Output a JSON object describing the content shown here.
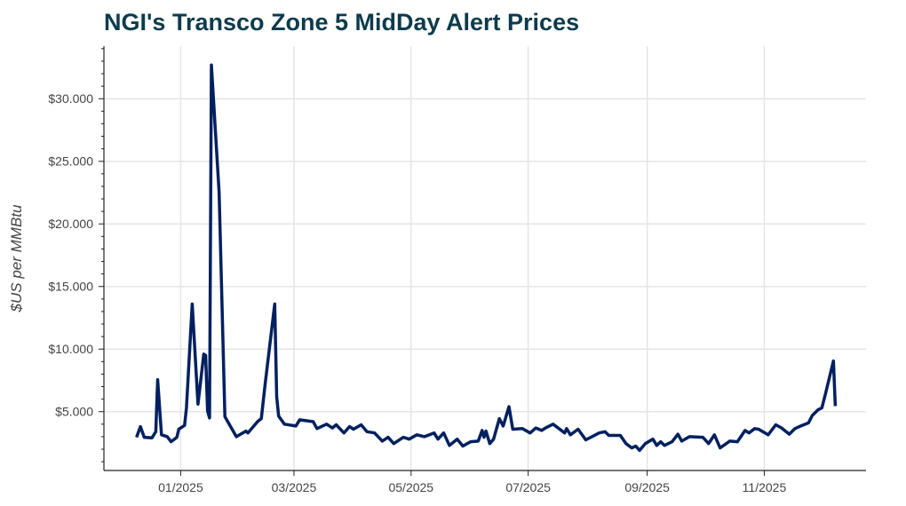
{
  "chart_data": {
    "type": "line",
    "title": "NGI's Transco Zone 5 MidDay Alert Prices",
    "xlabel": "",
    "ylabel": "$US per MMBtu",
    "ylim": [
      0.3,
      34.2
    ],
    "xlim": [
      "2024-11-22",
      "2025-12-24"
    ],
    "grid": true,
    "line_color": "#002060",
    "title_color": "#0d3b4c",
    "yticks": [
      5,
      10,
      15,
      20,
      25,
      30
    ],
    "ytick_labels": [
      "$5.000",
      "$10.000",
      "$15.000",
      "$20.000",
      "$25.000",
      "$30.000"
    ],
    "xticks": [
      "2025-01-01",
      "2025-03-01",
      "2025-05-01",
      "2025-07-01",
      "2025-09-01",
      "2025-11-01"
    ],
    "xtick_labels": [
      "01/2025",
      "03/2025",
      "05/2025",
      "07/2025",
      "09/2025",
      "11/2025"
    ],
    "series": [
      {
        "x": [
          "2024-12-09",
          "2024-12-11",
          "2024-12-13",
          "2024-12-17",
          "2024-12-19",
          "2024-12-20",
          "2024-12-22",
          "2024-12-25",
          "2024-12-27",
          "2024-12-30",
          "2024-12-31",
          "2025-01-03",
          "2025-01-04",
          "2025-01-07",
          "2025-01-10",
          "2025-01-13",
          "2025-01-14",
          "2025-01-15",
          "2025-01-16",
          "2025-01-17",
          "2025-01-21",
          "2025-01-24",
          "2025-01-30",
          "2025-02-04",
          "2025-02-05",
          "2025-02-10",
          "2025-02-12",
          "2025-02-14",
          "2025-02-19",
          "2025-02-20",
          "2025-02-21",
          "2025-02-24",
          "2025-03-02",
          "2025-03-04",
          "2025-03-11",
          "2025-03-13",
          "2025-03-18",
          "2025-03-21",
          "2025-03-23",
          "2025-03-27",
          "2025-03-30",
          "2025-04-01",
          "2025-04-05",
          "2025-04-08",
          "2025-04-12",
          "2025-04-16",
          "2025-04-19",
          "2025-04-22",
          "2025-04-27",
          "2025-04-30",
          "2025-05-04",
          "2025-05-08",
          "2025-05-13",
          "2025-05-15",
          "2025-05-18",
          "2025-05-21",
          "2025-05-25",
          "2025-05-28",
          "2025-06-01",
          "2025-06-05",
          "2025-06-07",
          "2025-06-08",
          "2025-06-09",
          "2025-06-11",
          "2025-06-13",
          "2025-06-16",
          "2025-06-18",
          "2025-06-21",
          "2025-06-23",
          "2025-06-28",
          "2025-07-02",
          "2025-07-05",
          "2025-07-08",
          "2025-07-10",
          "2025-07-14",
          "2025-07-20",
          "2025-07-21",
          "2025-07-23",
          "2025-07-27",
          "2025-07-31",
          "2025-08-07",
          "2025-08-10",
          "2025-08-12",
          "2025-08-18",
          "2025-08-21",
          "2025-08-24",
          "2025-08-26",
          "2025-08-28",
          "2025-08-31",
          "2025-09-04",
          "2025-09-06",
          "2025-09-08",
          "2025-09-10",
          "2025-09-14",
          "2025-09-17",
          "2025-09-19",
          "2025-09-23",
          "2025-09-30",
          "2025-10-03",
          "2025-10-06",
          "2025-10-09",
          "2025-10-14",
          "2025-10-18",
          "2025-10-22",
          "2025-10-24",
          "2025-10-27",
          "2025-10-29",
          "2025-11-03",
          "2025-11-07",
          "2025-11-10",
          "2025-11-14",
          "2025-11-17",
          "2025-11-20",
          "2025-11-24",
          "2025-11-26",
          "2025-11-29",
          "2025-12-01",
          "2025-12-03",
          "2025-12-07",
          "2025-12-08"
        ],
        "y": [
          2.95,
          3.8,
          2.95,
          2.9,
          3.4,
          7.55,
          3.15,
          3.0,
          2.6,
          2.95,
          3.6,
          3.9,
          5.3,
          13.6,
          5.6,
          9.6,
          9.5,
          5.05,
          4.5,
          32.7,
          22.5,
          4.6,
          3.0,
          3.45,
          3.3,
          4.2,
          4.45,
          7.2,
          13.6,
          6.2,
          4.65,
          4.0,
          3.85,
          4.35,
          4.2,
          3.65,
          4.0,
          3.7,
          3.95,
          3.3,
          3.8,
          3.6,
          3.95,
          3.4,
          3.3,
          2.65,
          2.95,
          2.45,
          2.95,
          2.8,
          3.15,
          3.0,
          3.3,
          2.8,
          3.3,
          2.3,
          2.8,
          2.25,
          2.6,
          2.65,
          3.5,
          2.95,
          3.45,
          2.45,
          2.8,
          4.45,
          3.85,
          5.4,
          3.6,
          3.65,
          3.3,
          3.7,
          3.5,
          3.7,
          4.0,
          3.3,
          3.65,
          3.15,
          3.6,
          2.75,
          3.3,
          3.4,
          3.1,
          3.1,
          2.45,
          2.1,
          2.25,
          1.9,
          2.45,
          2.8,
          2.3,
          2.6,
          2.3,
          2.6,
          3.2,
          2.65,
          3.0,
          2.95,
          2.45,
          3.15,
          2.1,
          2.65,
          2.6,
          3.5,
          3.3,
          3.65,
          3.6,
          3.15,
          3.95,
          3.7,
          3.2,
          3.65,
          3.85,
          4.1,
          4.7,
          5.15,
          5.3,
          6.5,
          9.05,
          5.45
        ]
      }
    ]
  }
}
